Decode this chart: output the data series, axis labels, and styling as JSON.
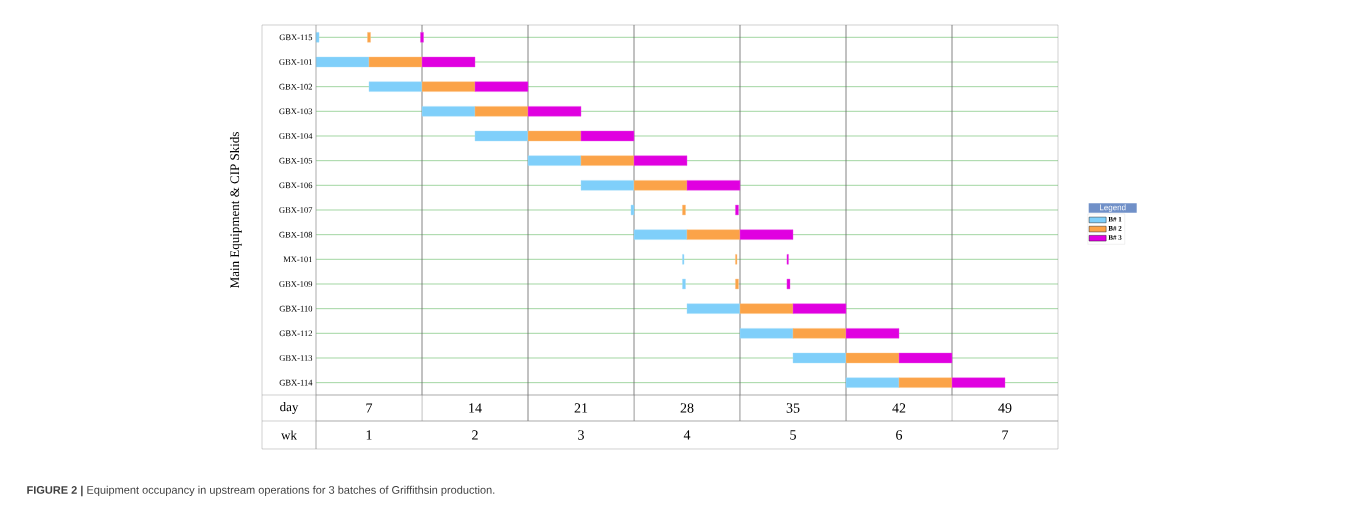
{
  "chart_data": {
    "type": "bar",
    "orientation": "horizontal",
    "ylabel": "Main Equipment & CIP Skids",
    "xlabel": "day",
    "x2label": "wk",
    "legend_title": "Legend",
    "legend": "right",
    "grid": "y",
    "categories": [
      "GBX-115",
      "GBX-101",
      "GBX-102",
      "GBX-103",
      "GBX-104",
      "GBX-105",
      "GBX-106",
      "GBX-107",
      "GBX-108",
      "MX-101",
      "GBX-109",
      "GBX-110",
      "GBX-112",
      "GBX-113",
      "GBX-114"
    ],
    "xlim": [
      3.5,
      52.5
    ],
    "xticks": [
      7,
      14,
      21,
      28,
      35,
      42,
      49
    ],
    "x2lim": [
      0.5,
      7.5
    ],
    "x2ticks": [
      1,
      2,
      3,
      4,
      5,
      6,
      7
    ],
    "ref_lines": [
      {
        "axis": "x",
        "value": 10.5
      },
      {
        "axis": "x",
        "value": 17.5
      },
      {
        "axis": "x",
        "value": 24.5
      },
      {
        "axis": "x",
        "value": 31.5
      },
      {
        "axis": "x",
        "value": 38.5
      },
      {
        "axis": "x",
        "value": 45.5
      }
    ],
    "series": [
      {
        "name": "B# 1",
        "color": "#7fcffa",
        "base": [
          3.5,
          3.5,
          7,
          10.5,
          14,
          17.5,
          21,
          24.3,
          24.5,
          27.7,
          27.7,
          28,
          31.5,
          35,
          38.5
        ],
        "values": [
          0.2,
          3.5,
          3.5,
          3.5,
          3.5,
          3.5,
          3.5,
          0.2,
          3.5,
          0.1,
          0.2,
          3.5,
          3.5,
          3.5,
          3.5
        ]
      },
      {
        "name": "B# 2",
        "color": "#fba348",
        "base": [
          6.9,
          7,
          10.5,
          14,
          17.5,
          21,
          24.5,
          27.7,
          28,
          31.2,
          31.2,
          31.5,
          35,
          38.5,
          42
        ],
        "values": [
          0.2,
          3.5,
          3.5,
          3.5,
          3.5,
          3.5,
          3.5,
          0.2,
          3.5,
          0.1,
          0.2,
          3.5,
          3.5,
          3.5,
          3.5
        ]
      },
      {
        "name": "B# 3",
        "color": "#e000e0",
        "base": [
          10.4,
          10.5,
          14,
          17.5,
          21,
          24.5,
          28,
          31.2,
          31.5,
          34.6,
          34.6,
          35,
          38.5,
          42,
          45.5
        ],
        "values": [
          0.2,
          3.5,
          3.5,
          3.5,
          3.5,
          3.5,
          3.5,
          0.2,
          3.5,
          0.1,
          0.2,
          3.5,
          3.5,
          3.5,
          3.5
        ]
      }
    ],
    "annotations": [
      "**FIGURE 2 |** Equipment occupancy in upstream operations for 3 batches of Griffithsin production."
    ]
  }
}
